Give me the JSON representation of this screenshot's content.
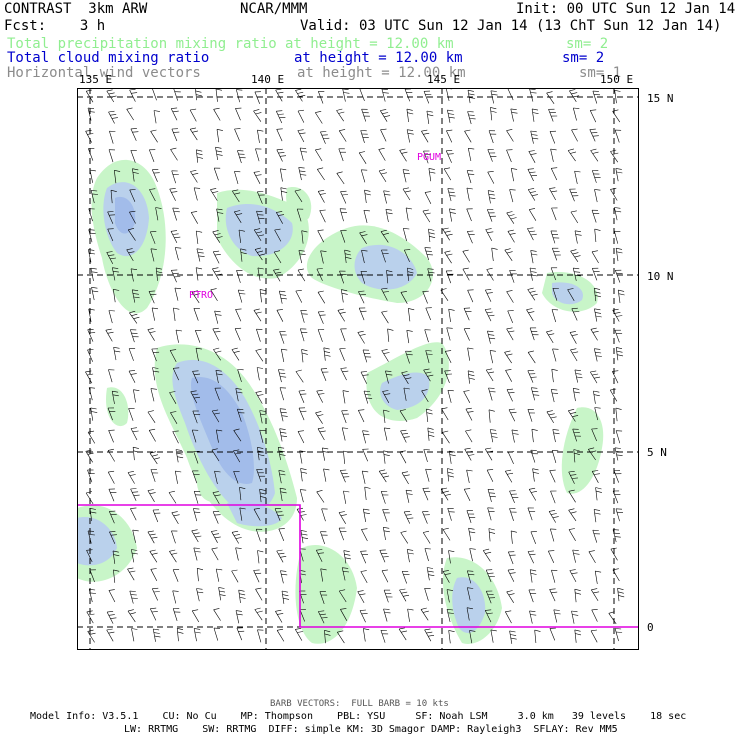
{
  "header": {
    "left_line1": "CONTRAST  3km ARW",
    "center_line1": "NCAR/MMM",
    "right_line1": "Init: 00 UTC Sun 12 Jan 14",
    "left_line2": "Fcst:    3 h",
    "right_line2": "Valid: 03 UTC Sun 12 Jan 14 (13 ChT Sun 12 Jan 14)"
  },
  "fields": [
    {
      "label": "Total precipitation mixing ratio",
      "level": "at height = 12.00 km",
      "smooth": "sm= 2",
      "color": "#90ee90"
    },
    {
      "label": "Total cloud mixing ratio",
      "level": "at height = 12.00 km",
      "smooth": "sm= 2",
      "color": "#0000cd"
    },
    {
      "label": "Horizontal wind vectors",
      "level": "at height = 12.00 km",
      "smooth": "sm= 1",
      "color": "#8c8c8c"
    }
  ],
  "map": {
    "lon_labels": [
      "135 E",
      "140 E",
      "145 E",
      "150 E"
    ],
    "lat_labels": [
      "15 N",
      "10 N",
      "5 N",
      "0"
    ],
    "stations": [
      "PGUM",
      "PTRO"
    ],
    "colors": {
      "precip_fill": "#c8f5c8",
      "cloud_fill": "#b8cdf0",
      "cloud_core": "#9db8ea",
      "grid": "#000000",
      "boundary": "#e000e0",
      "barb": "#000000"
    }
  },
  "footer": {
    "barb_note": "BARB VECTORS:  FULL BARB = 10 kts",
    "model_line1": "Model Info: V3.5.1    CU: No Cu    MP: Thompson    PBL: YSU     SF: Noah LSM     3.0 km   39 levels    18 sec",
    "model_line2": "LW: RRTMG    SW: RRTMG  DIFF: simple KM: 3D Smagor DAMP: Rayleigh3  SFLAY: Rev MM5"
  }
}
